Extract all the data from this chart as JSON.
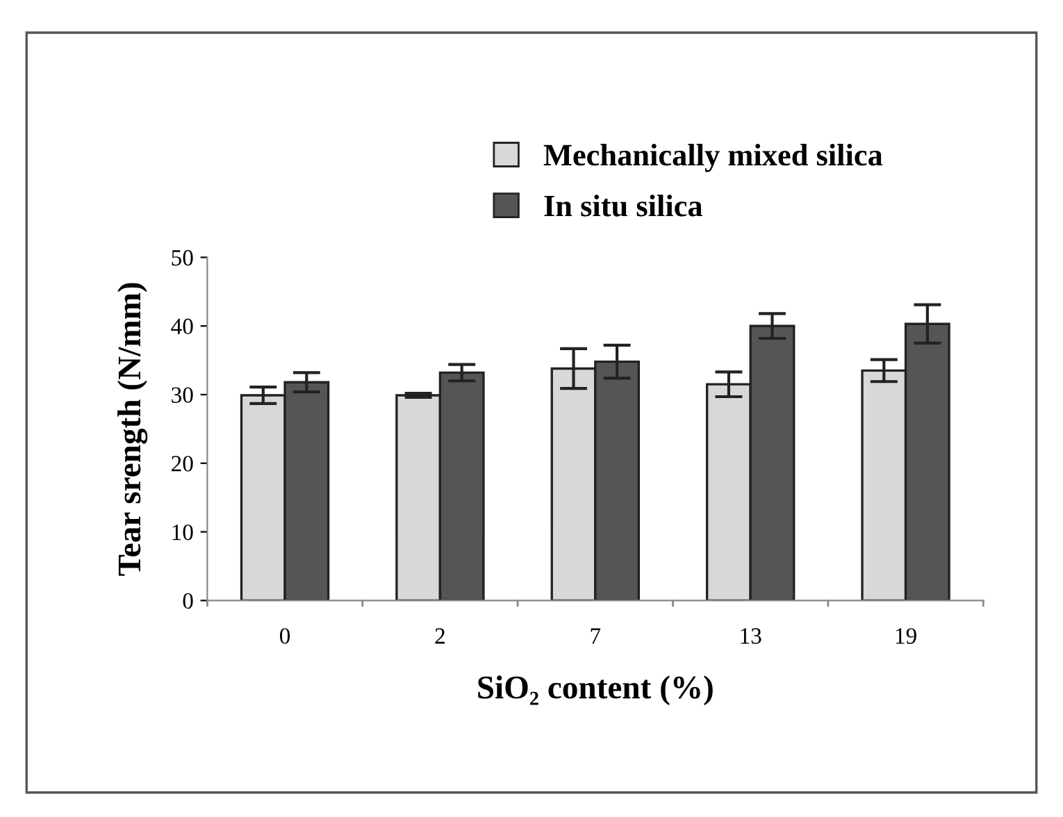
{
  "chart_data": {
    "type": "bar",
    "xlabel": "SiO₂ content (%)",
    "ylabel": "Tear srength (N/mm)",
    "categories": [
      "0",
      "2",
      "7",
      "13",
      "19"
    ],
    "series": [
      {
        "name": "Mechanically mixed silica",
        "color": "#d8d8d8",
        "values": [
          29.9,
          29.9,
          33.8,
          31.5,
          33.5
        ],
        "errors": [
          1.2,
          0.3,
          2.9,
          1.8,
          1.6
        ]
      },
      {
        "name": "In situ silica",
        "color": "#555555",
        "values": [
          31.8,
          33.2,
          34.8,
          40.0,
          40.3
        ],
        "errors": [
          1.4,
          1.2,
          2.4,
          1.8,
          2.8
        ]
      }
    ],
    "ylim": [
      0,
      50
    ],
    "yticks": [
      0,
      10,
      20,
      30,
      40,
      50
    ],
    "grid": false,
    "legend": "top"
  }
}
